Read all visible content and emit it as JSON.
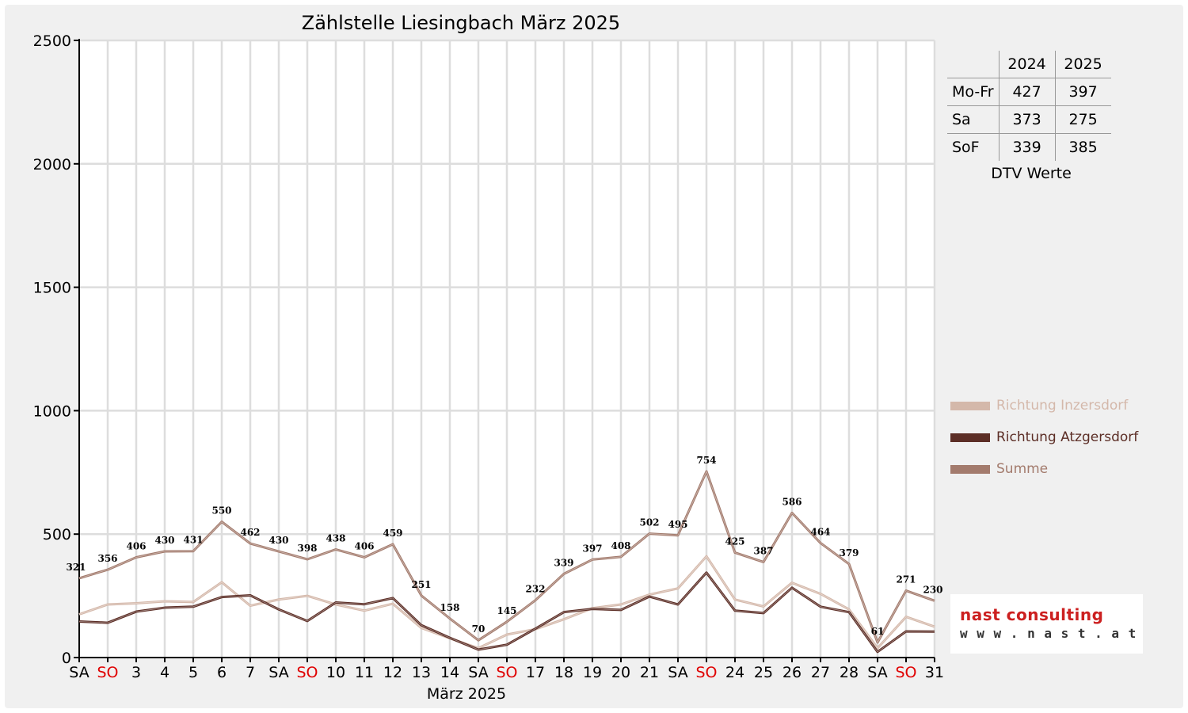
{
  "chart_data": {
    "type": "line",
    "title": "Zählstelle Liesingbach März 2025",
    "xlabel": "März 2025",
    "ylabel": "",
    "ylim": [
      0,
      2500
    ],
    "yticks": [
      0,
      500,
      1000,
      1500,
      2000,
      2500
    ],
    "grid": true,
    "legend_position": "right",
    "categories": [
      "SA",
      "SO",
      "3",
      "4",
      "5",
      "6",
      "7",
      "SA",
      "SO",
      "10",
      "11",
      "12",
      "13",
      "14",
      "SA",
      "SO",
      "17",
      "18",
      "19",
      "20",
      "21",
      "SA",
      "SO",
      "24",
      "25",
      "26",
      "27",
      "28",
      "SA",
      "SO",
      "31"
    ],
    "weekend_categories": [
      "SO"
    ],
    "weekend_color": "#e00000",
    "series": [
      {
        "name": "Richtung Inzersdorf",
        "color": "#d4b8aa",
        "values": [
          175,
          215,
          220,
          228,
          225,
          305,
          210,
          235,
          250,
          215,
          190,
          218,
          120,
          78,
          38,
          93,
          115,
          155,
          200,
          215,
          255,
          280,
          410,
          235,
          207,
          303,
          258,
          195,
          38,
          165,
          125
        ]
      },
      {
        "name": "Richtung Atzgersdorf",
        "color": "#5c2e26",
        "values": [
          146,
          141,
          186,
          202,
          206,
          245,
          252,
          195,
          148,
          223,
          216,
          241,
          131,
          80,
          32,
          52,
          117,
          184,
          197,
          193,
          247,
          215,
          344,
          190,
          180,
          283,
          206,
          184,
          23,
          106,
          105
        ]
      },
      {
        "name": "Summe",
        "color": "#a37b6d",
        "show_labels": true,
        "values": [
          321,
          356,
          406,
          430,
          431,
          550,
          462,
          430,
          398,
          438,
          406,
          459,
          251,
          158,
          70,
          145,
          232,
          339,
          397,
          408,
          502,
          495,
          754,
          425,
          387,
          586,
          464,
          379,
          61,
          271,
          230
        ]
      }
    ]
  },
  "dtv": {
    "header": [
      "",
      "2024",
      "2025"
    ],
    "rows": [
      {
        "label": "Mo-Fr",
        "v2024": "427",
        "v2025": "397"
      },
      {
        "label": "Sa",
        "v2024": "373",
        "v2025": "275"
      },
      {
        "label": "SoF",
        "v2024": "339",
        "v2025": "385"
      }
    ],
    "caption": "DTV Werte"
  },
  "logo": {
    "name": "nast consulting",
    "url": "w w w . n a s t . a t",
    "name_color": "#cc2020"
  }
}
